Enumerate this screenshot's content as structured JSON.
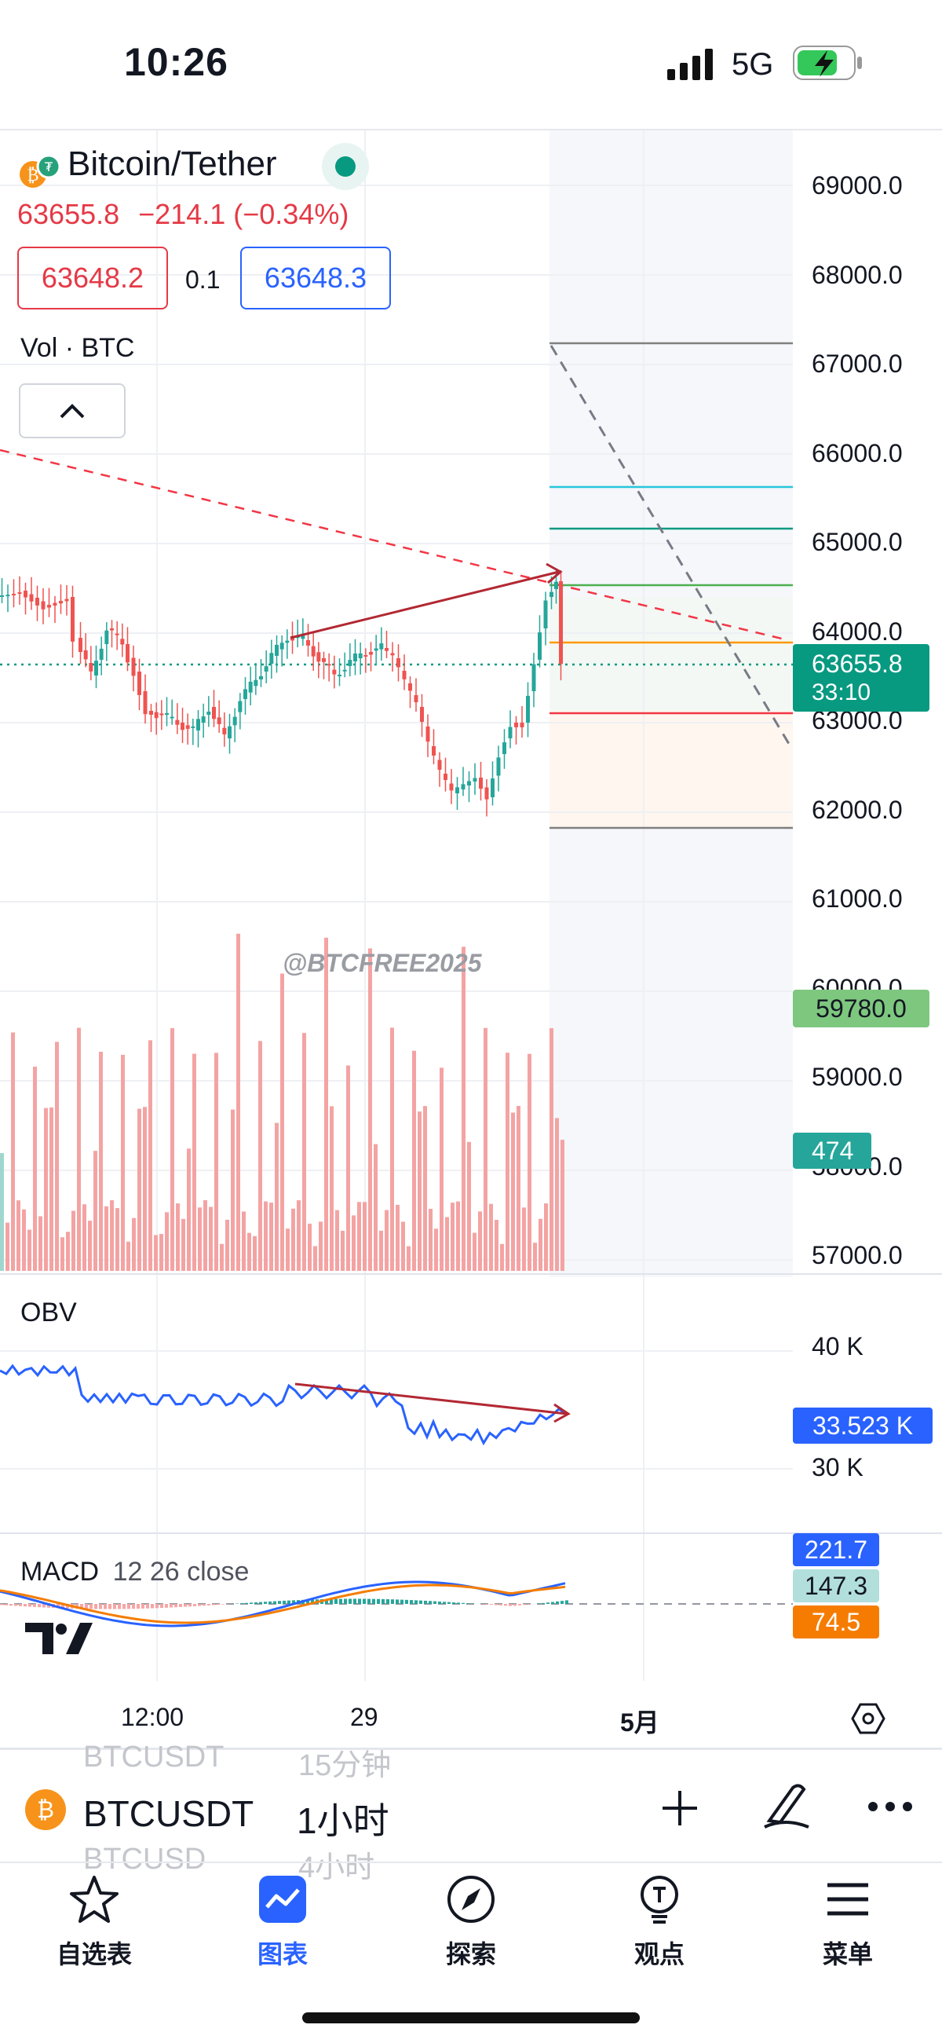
{
  "status_bar": {
    "time": "10:26",
    "network": "5G"
  },
  "symbol": {
    "title": "Bitcoin/Tether",
    "last": "63655.8",
    "change": "−214.1 (−0.34%)",
    "bid": "63648.2",
    "spread": "0.1",
    "ask": "63648.3"
  },
  "volume_legend": "Vol · BTC",
  "watermark": "@BTCFREE2025",
  "price_axis": [
    "69000.0",
    "68000.0",
    "67000.0",
    "66000.0",
    "65000.0",
    "64000.0",
    "63000.0",
    "62000.0",
    "61000.0",
    "60000.0",
    "59000.0",
    "58000.0",
    "57000.0"
  ],
  "tags": {
    "last_price": "63655.8",
    "countdown": "33:10",
    "lower_price": "59780.0",
    "volume": "474"
  },
  "obv": {
    "title": "OBV",
    "axis": [
      "40 K",
      "30 K"
    ],
    "value": "33.523 K"
  },
  "macd": {
    "title": "MACD",
    "params": "12 26 close",
    "values": [
      "221.7",
      "147.3",
      "74.5"
    ]
  },
  "x_axis": [
    "12:00",
    "29",
    "5月"
  ],
  "bottom_bar": {
    "ghost_prev_symbol": "BTCUSDT",
    "ghost_prev_interval": "15分钟",
    "symbol": "BTCUSDT",
    "interval": "1小时",
    "ghost_next_symbol": "BTCUSD",
    "ghost_next_interval": "4小时"
  },
  "tabs": [
    {
      "label": "自选表",
      "icon": "star-icon"
    },
    {
      "label": "图表",
      "icon": "chart-icon"
    },
    {
      "label": "探索",
      "icon": "compass-icon"
    },
    {
      "label": "观点",
      "icon": "idea-icon"
    },
    {
      "label": "菜单",
      "icon": "menu-icon"
    }
  ],
  "colors": {
    "up": "#26a69a",
    "down": "#ef5350",
    "accent": "#2962ff",
    "price_tag": "#089981",
    "lower_tag": "#7ec77f",
    "macd_orange": "#f57c00"
  }
}
